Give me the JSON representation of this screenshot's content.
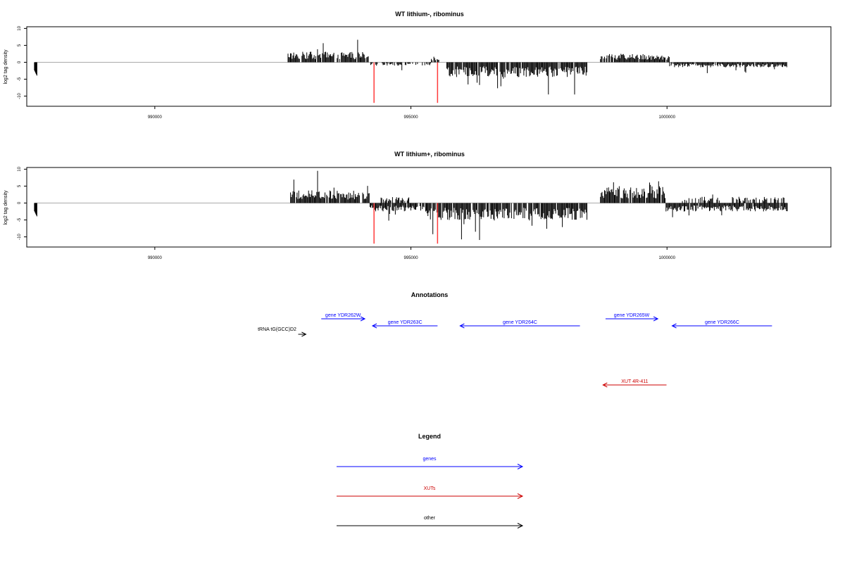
{
  "colors": {
    "genes": "#0000ff",
    "xuts": "#cc0000",
    "other": "#000000",
    "highlight": "#ff3b3b",
    "baseline": "#aaaaaa"
  },
  "chart_data": [
    {
      "type": "bar",
      "title": "WT lithium-, ribominus",
      "ylabel": "log2 tag density",
      "ylim": [
        -13,
        10.5
      ],
      "xlim": [
        987500,
        1003200
      ],
      "x_ticks": [
        990000,
        995000,
        1000000
      ],
      "y_ticks": [
        10,
        5,
        0,
        -5,
        -10
      ],
      "profile": {
        "early_dip": {
          "start": 987650,
          "end": 987700,
          "min": -4
        },
        "segments": [
          {
            "start": 992600,
            "end": 994200,
            "sign": 1,
            "base": 2.5,
            "peak": 7.8
          },
          {
            "start": 994200,
            "end": 995400,
            "sign": -1,
            "base": 0.8,
            "peak": 3.0,
            "sparse": 0.55
          },
          {
            "start": 995400,
            "end": 995550,
            "sign": 1,
            "base": 1.5,
            "peak": 3.0,
            "sparse": 0.7
          },
          {
            "start": 995700,
            "end": 998450,
            "sign": -1,
            "base": 3.5,
            "peak": 9.5
          },
          {
            "start": 998700,
            "end": 1000050,
            "sign": 1,
            "base": 2.0,
            "peak": 3.8
          },
          {
            "start": 1000050,
            "end": 1002350,
            "sign": -1,
            "base": 1.2,
            "peak": 4.0
          }
        ]
      },
      "highlights": [
        {
          "x": 994280,
          "min": -12,
          "max": 0
        },
        {
          "x": 995520,
          "min": -12,
          "max": 0
        }
      ]
    },
    {
      "type": "bar",
      "title": "WT lithium+, ribominus",
      "ylabel": "log2 tag density",
      "ylim": [
        -13,
        10.5
      ],
      "xlim": [
        987500,
        1003200
      ],
      "x_ticks": [
        990000,
        995000,
        1000000
      ],
      "y_ticks": [
        10,
        5,
        0,
        -5,
        -10
      ],
      "profile": {
        "early_dip": {
          "start": 987650,
          "end": 987700,
          "min": -4
        },
        "segments": [
          {
            "start": 992650,
            "end": 994200,
            "sign": 1,
            "base": 3.0,
            "peak": 9.5
          },
          {
            "start": 994200,
            "end": 995300,
            "sign": -1,
            "base": 2.0,
            "peak": 6.0
          },
          {
            "start": 994400,
            "end": 995000,
            "sign": 1,
            "base": 1.5,
            "peak": 3.0,
            "sparse": 0.6
          },
          {
            "start": 995300,
            "end": 998450,
            "sign": -1,
            "base": 4.0,
            "peak": 12.0
          },
          {
            "start": 998700,
            "end": 999980,
            "sign": 1,
            "base": 4.0,
            "peak": 7.5
          },
          {
            "start": 999980,
            "end": 1002350,
            "sign": -1,
            "base": 2.0,
            "peak": 5.5
          },
          {
            "start": 1000300,
            "end": 1002300,
            "sign": 1,
            "base": 1.5,
            "peak": 4.0,
            "sparse": 0.5
          }
        ]
      },
      "highlights": [
        {
          "x": 994280,
          "min": -12,
          "max": 0
        },
        {
          "x": 995520,
          "min": -12,
          "max": 0
        }
      ]
    }
  ],
  "annotations": {
    "title": "Annotations",
    "features": [
      {
        "label": "gene YDR262W",
        "start": 993250,
        "end": 994100,
        "strand": "+",
        "class": "genes",
        "row": 0
      },
      {
        "label": "tRNA tG(GCC)D2",
        "start": 992800,
        "end": 992950,
        "strand": "+",
        "class": "other",
        "row": 2
      },
      {
        "label": "gene YDR263C",
        "start": 994250,
        "end": 995520,
        "strand": "-",
        "class": "genes",
        "row": 1
      },
      {
        "label": "gene YDR264C",
        "start": 995960,
        "end": 998300,
        "strand": "-",
        "class": "genes",
        "row": 1
      },
      {
        "label": "gene YDR265W",
        "start": 998800,
        "end": 999820,
        "strand": "+",
        "class": "genes",
        "row": 0
      },
      {
        "label": "gene YDR266C",
        "start": 1000100,
        "end": 1002050,
        "strand": "-",
        "class": "genes",
        "row": 1
      },
      {
        "label": "XUT 4R-411",
        "start": 998750,
        "end": 999990,
        "strand": "-",
        "class": "xuts",
        "row": 3
      }
    ]
  },
  "legend": {
    "title": "Legend",
    "items": [
      {
        "label": "genes",
        "class": "genes"
      },
      {
        "label": "XUTs",
        "class": "xuts"
      },
      {
        "label": "other",
        "class": "other"
      }
    ]
  }
}
